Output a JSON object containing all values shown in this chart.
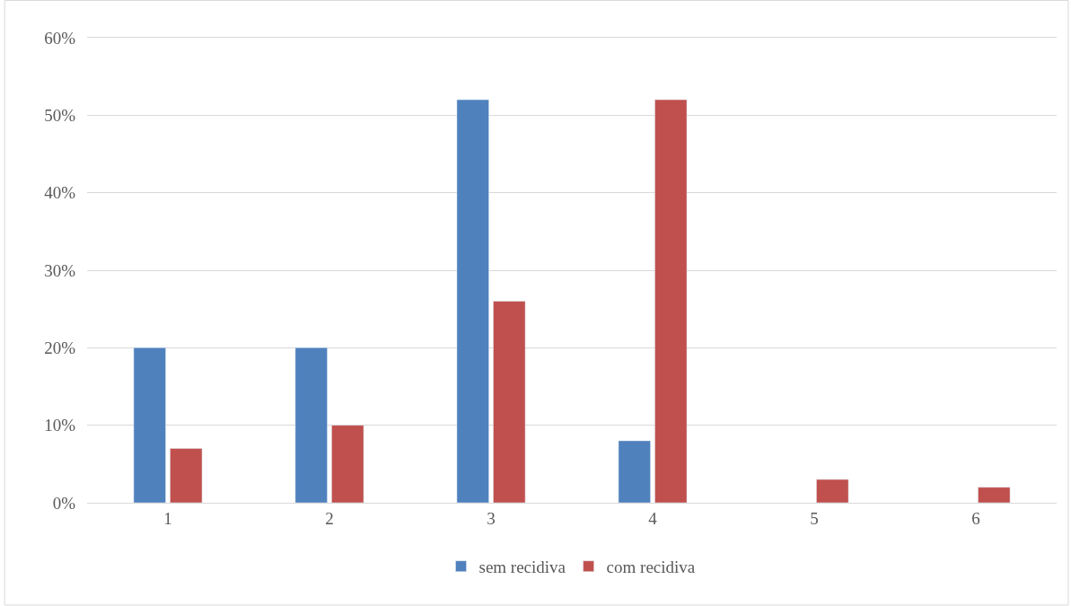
{
  "chart_data": {
    "type": "bar",
    "categories": [
      "1",
      "2",
      "3",
      "4",
      "5",
      "6"
    ],
    "series": [
      {
        "name": "sem recidiva",
        "color": "#4f81bd",
        "values": [
          20,
          20,
          52,
          8,
          null,
          null
        ]
      },
      {
        "name": "com recidiva",
        "color": "#c0504d",
        "values": [
          7,
          10,
          26,
          52,
          3,
          2
        ]
      }
    ],
    "ylim": [
      0,
      60
    ],
    "yticks": [
      {
        "value": 0,
        "label": "0%"
      },
      {
        "value": 10,
        "label": "10%"
      },
      {
        "value": 20,
        "label": "20%"
      },
      {
        "value": 30,
        "label": "30%"
      },
      {
        "value": 40,
        "label": "40%"
      },
      {
        "value": 50,
        "label": "50%"
      },
      {
        "value": 60,
        "label": "60%"
      }
    ],
    "grid": "y",
    "legend": "bottom"
  }
}
